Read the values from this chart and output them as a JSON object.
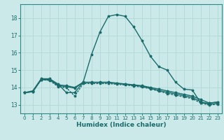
{
  "xlabel": "Humidex (Indice chaleur)",
  "xlim": [
    -0.5,
    23.5
  ],
  "ylim": [
    12.5,
    18.8
  ],
  "yticks": [
    13,
    14,
    15,
    16,
    17,
    18
  ],
  "xticks": [
    0,
    1,
    2,
    3,
    4,
    5,
    6,
    7,
    8,
    9,
    10,
    11,
    12,
    13,
    14,
    15,
    16,
    17,
    18,
    19,
    20,
    21,
    22,
    23
  ],
  "bg_color": "#cce9e9",
  "grid_color": "#b0d8d8",
  "line_color": "#1a6b6b",
  "line1_x": [
    0,
    1,
    2,
    3,
    4,
    5,
    6,
    7,
    8,
    9,
    10,
    11,
    12,
    13,
    14,
    15,
    16,
    17,
    18,
    19,
    20,
    21,
    22,
    23
  ],
  "line1_y": [
    13.7,
    13.8,
    14.5,
    14.5,
    14.2,
    13.7,
    13.7,
    14.3,
    15.9,
    17.2,
    18.1,
    18.2,
    18.1,
    17.5,
    16.7,
    15.8,
    15.2,
    15.0,
    14.3,
    13.9,
    13.85,
    13.1,
    13.1,
    13.15
  ],
  "line2_x": [
    0,
    1,
    2,
    3,
    4,
    5,
    6,
    7,
    8,
    9,
    10,
    11,
    12,
    13,
    14,
    15,
    16,
    17,
    18,
    19,
    20,
    21,
    22,
    23
  ],
  "line2_y": [
    13.7,
    13.75,
    14.45,
    14.45,
    14.15,
    14.1,
    14.0,
    14.3,
    14.3,
    14.3,
    14.3,
    14.25,
    14.2,
    14.15,
    14.1,
    14.0,
    13.9,
    13.8,
    13.7,
    13.6,
    13.5,
    13.3,
    13.1,
    13.15
  ],
  "line3_x": [
    0,
    1,
    2,
    3,
    4,
    5,
    6,
    7,
    8,
    9,
    10,
    11,
    12,
    13,
    14,
    15,
    16,
    17,
    18,
    19,
    20,
    21,
    22,
    23
  ],
  "line3_y": [
    13.7,
    13.75,
    14.45,
    14.45,
    14.1,
    14.05,
    13.95,
    14.28,
    14.28,
    14.28,
    14.28,
    14.22,
    14.18,
    14.12,
    14.06,
    13.95,
    13.82,
    13.72,
    13.62,
    13.52,
    13.42,
    13.18,
    13.02,
    13.08
  ],
  "line4_x": [
    0,
    1,
    2,
    3,
    4,
    5,
    6,
    7,
    8,
    9,
    10,
    11,
    12,
    13,
    14,
    15,
    16,
    17,
    18,
    19,
    20,
    21,
    22,
    23
  ],
  "line4_y": [
    13.7,
    13.75,
    14.45,
    14.4,
    14.05,
    13.98,
    13.5,
    14.22,
    14.22,
    14.22,
    14.22,
    14.18,
    14.14,
    14.08,
    14.02,
    13.92,
    13.78,
    13.65,
    13.55,
    13.45,
    13.35,
    13.1,
    12.98,
    13.04
  ]
}
